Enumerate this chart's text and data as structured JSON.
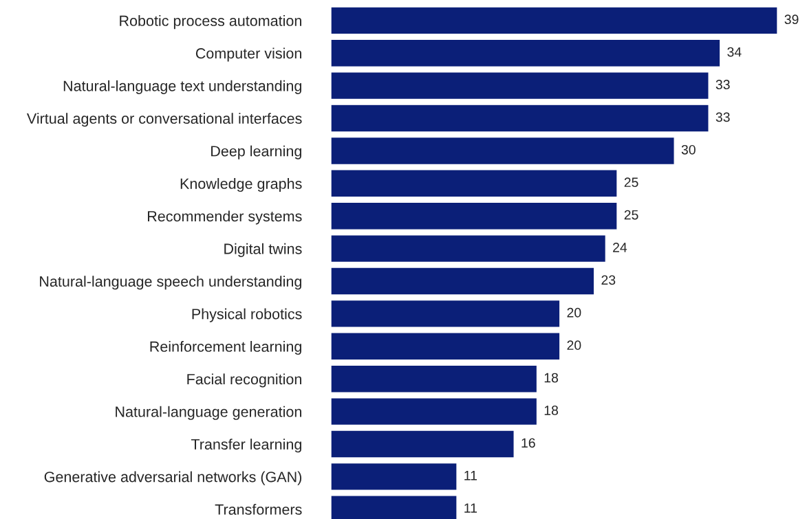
{
  "chart_data": {
    "type": "bar",
    "orientation": "horizontal",
    "categories": [
      "Robotic process automation",
      "Computer vision",
      "Natural-language text understanding",
      "Virtual agents or conversational interfaces",
      "Deep learning",
      "Knowledge graphs",
      "Recommender systems",
      "Digital twins",
      "Natural-language speech understanding",
      "Physical robotics",
      "Reinforcement learning",
      "Facial recognition",
      "Natural-language generation",
      "Transfer learning",
      "Generative adversarial networks (GAN)",
      "Transformers"
    ],
    "values": [
      39,
      34,
      33,
      33,
      30,
      25,
      25,
      24,
      23,
      20,
      20,
      18,
      18,
      16,
      11,
      11
    ],
    "color": "#0b1f78",
    "xlim": [
      0,
      39
    ],
    "data_labels": true,
    "tick_labels": "y",
    "grid": false,
    "legend": false
  }
}
